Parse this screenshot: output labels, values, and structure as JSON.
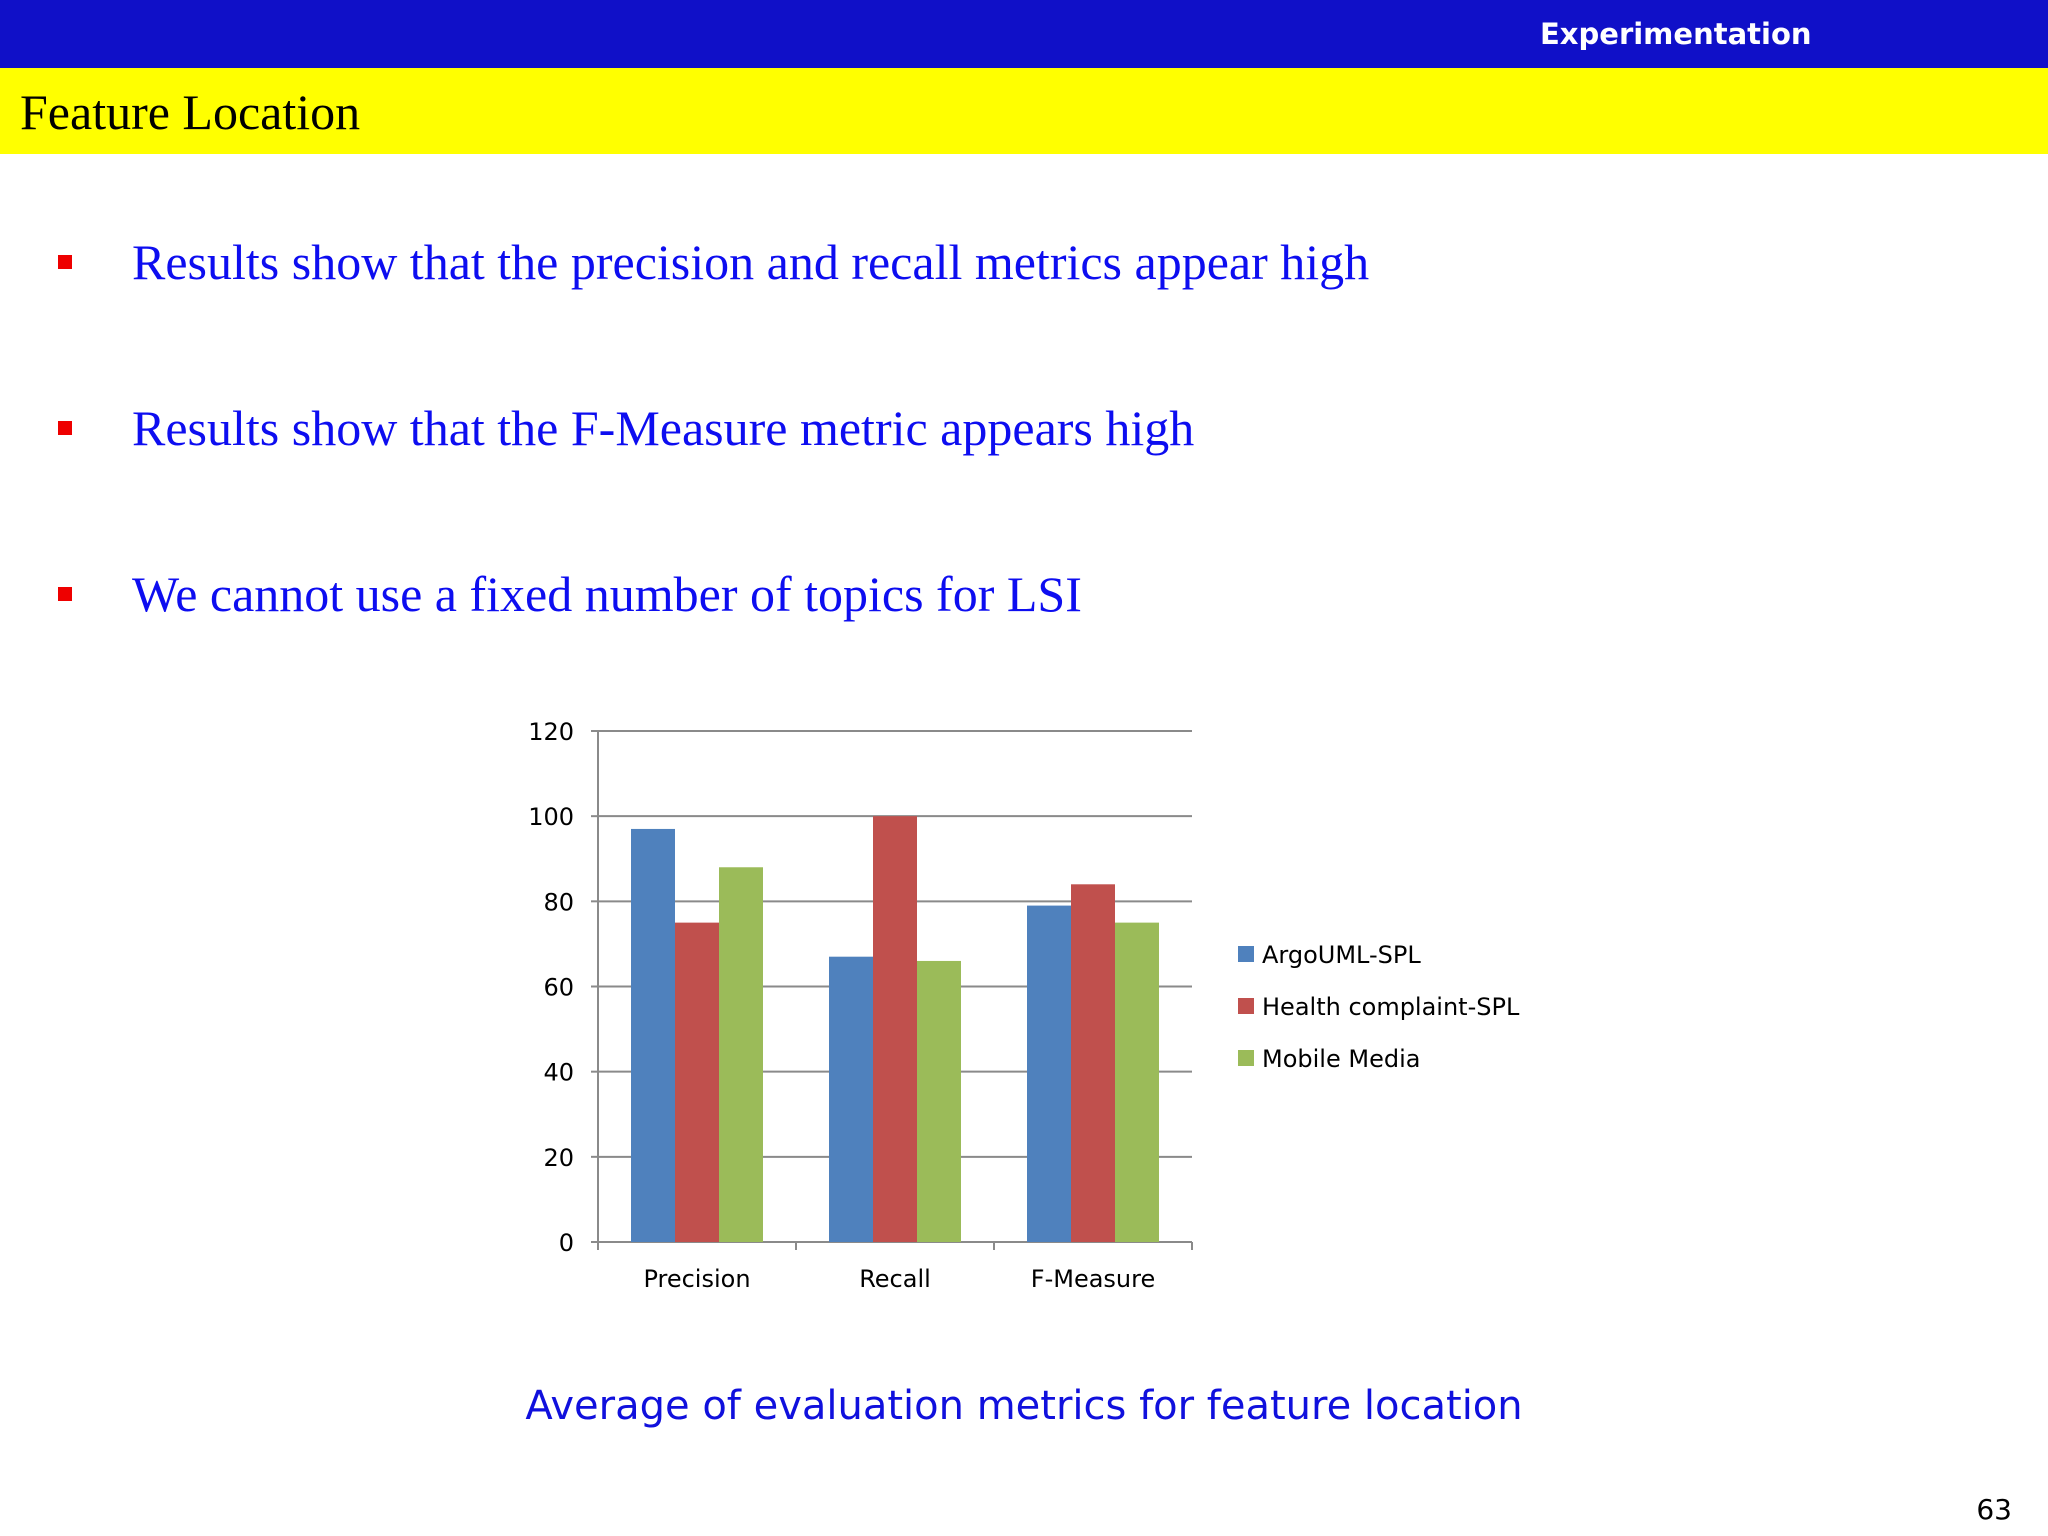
{
  "header": {
    "section": "Experimentation",
    "title": "Feature Location"
  },
  "bullets": [
    {
      "text": "Results show that the precision and recall metrics appear high"
    },
    {
      "text": "Results show that the F-Measure metric appears high"
    },
    {
      "text": "We cannot use a fixed number of topics for LSI"
    }
  ],
  "colors": {
    "header_bar": "#1010c8",
    "title_bar": "#ffff00",
    "bullet_marker": "#ee0000",
    "bullet_text": "#0d0df0"
  },
  "chart_data": {
    "type": "bar",
    "categories": [
      "Precision",
      "Recall",
      "F-Measure"
    ],
    "series": [
      {
        "name": "ArgoUML-SPL",
        "values": [
          97,
          67,
          79
        ],
        "color": "#4f81bd"
      },
      {
        "name": "Health complaint-SPL",
        "values": [
          75,
          100,
          84
        ],
        "color": "#c0504d"
      },
      {
        "name": "Mobile Media",
        "values": [
          88,
          66,
          75
        ],
        "color": "#9bbb59"
      }
    ],
    "ylim": [
      0,
      120
    ],
    "yticks": [
      0,
      20,
      40,
      60,
      80,
      100,
      120
    ],
    "grid": true,
    "legend": "right"
  },
  "caption": "Average of evaluation metrics for feature location",
  "page_number": "63"
}
